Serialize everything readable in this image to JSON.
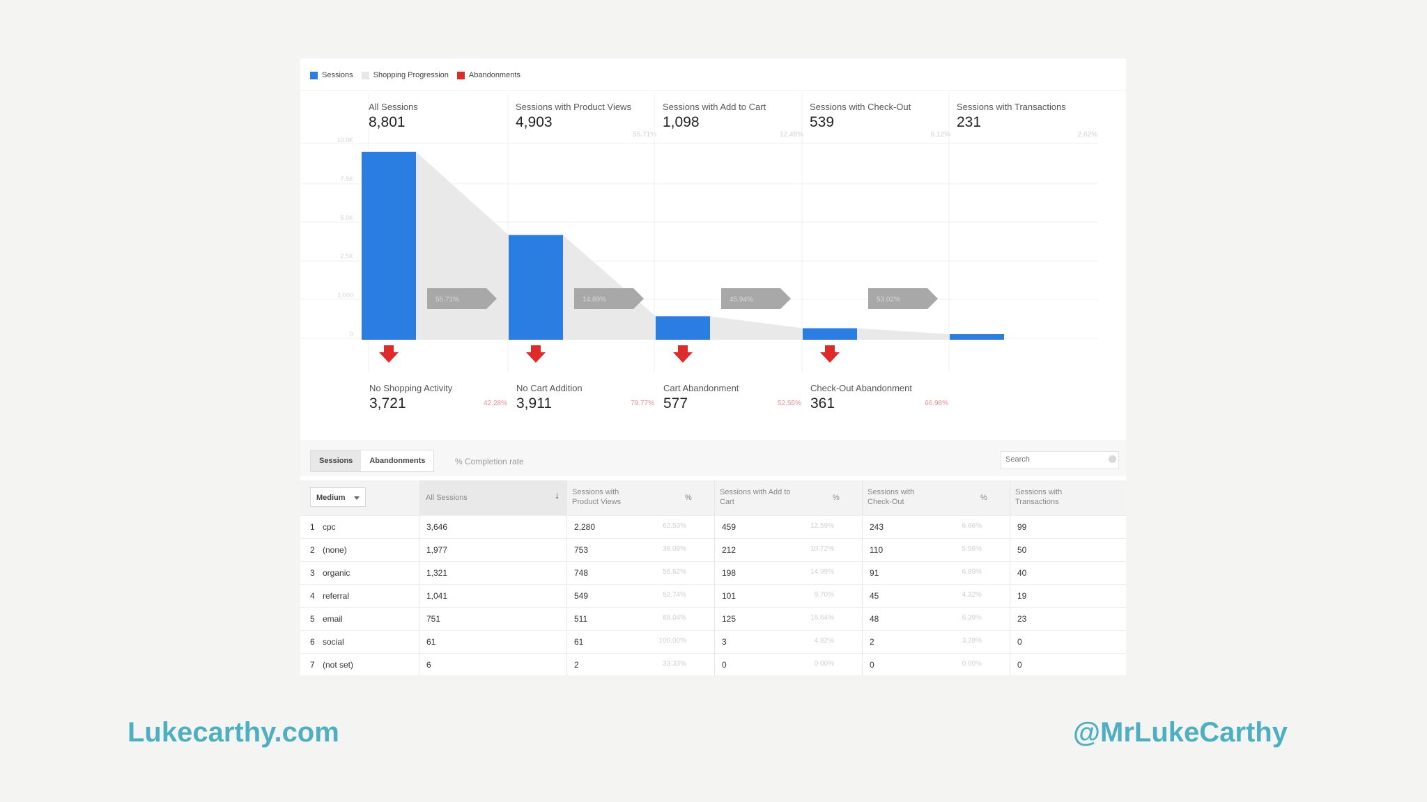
{
  "legend": [
    {
      "label": "Sessions",
      "color": "#2a7de1"
    },
    {
      "label": "Shopping Progression",
      "color": "#e7e7e7"
    },
    {
      "label": "Abandonments",
      "color": "#e02a2a"
    }
  ],
  "stages": [
    {
      "name": "All Sessions",
      "value": "8,801",
      "pct": "",
      "sessions": 8801
    },
    {
      "name": "Sessions with Product Views",
      "value": "4,903",
      "pct": "55.71%",
      "sessions": 4903
    },
    {
      "name": "Sessions with Add to Cart",
      "value": "1,098",
      "pct": "12.48%",
      "sessions": 1098
    },
    {
      "name": "Sessions with Check-Out",
      "value": "539",
      "pct": "6.12%",
      "sessions": 539
    },
    {
      "name": "Sessions with Transactions",
      "value": "231",
      "pct": "2.62%",
      "sessions": 231
    }
  ],
  "y_axis": {
    "ticks": [
      "10.0K",
      "7.5K",
      "5.0K",
      "2.5K",
      "1,000",
      "0"
    ]
  },
  "progressions": [
    "55.71%",
    "14.89%",
    "45.94%",
    "53.02%"
  ],
  "abandonments": [
    {
      "name": "No Shopping Activity",
      "value": "3,721",
      "pct": "42.28%"
    },
    {
      "name": "No Cart Addition",
      "value": "3,911",
      "pct": "79.77%"
    },
    {
      "name": "Cart Abandonment",
      "value": "577",
      "pct": "52.55%"
    },
    {
      "name": "Check-Out Abandonment",
      "value": "361",
      "pct": "66.98%"
    }
  ],
  "table_toolbar": {
    "tabs": [
      "Sessions",
      "Abandonments"
    ],
    "completion_label": "% Completion rate",
    "search_placeholder": "Search"
  },
  "table_header": {
    "dimension": "Medium",
    "all_sessions": "All Sessions",
    "product_views": "Sessions with Product Views",
    "pct": "%",
    "add_to_cart": "Sessions with Add to Cart",
    "check_out": "Sessions with Check-Out",
    "transactions": "Sessions with Transactions"
  },
  "rows": [
    {
      "idx": "1",
      "medium": "cpc",
      "all": "3,646",
      "pv": "2,280",
      "pv_pct": "62.53%",
      "atc": "459",
      "atc_pct": "12.59%",
      "co": "243",
      "co_pct": "6.66%",
      "tx": "99"
    },
    {
      "idx": "2",
      "medium": "(none)",
      "all": "1,977",
      "pv": "753",
      "pv_pct": "38.09%",
      "atc": "212",
      "atc_pct": "10.72%",
      "co": "110",
      "co_pct": "5.56%",
      "tx": "50"
    },
    {
      "idx": "3",
      "medium": "organic",
      "all": "1,321",
      "pv": "748",
      "pv_pct": "56.62%",
      "atc": "198",
      "atc_pct": "14.99%",
      "co": "91",
      "co_pct": "6.89%",
      "tx": "40"
    },
    {
      "idx": "4",
      "medium": "referral",
      "all": "1,041",
      "pv": "549",
      "pv_pct": "52.74%",
      "atc": "101",
      "atc_pct": "9.70%",
      "co": "45",
      "co_pct": "4.32%",
      "tx": "19"
    },
    {
      "idx": "5",
      "medium": "email",
      "all": "751",
      "pv": "511",
      "pv_pct": "68.04%",
      "atc": "125",
      "atc_pct": "16.64%",
      "co": "48",
      "co_pct": "6.39%",
      "tx": "23"
    },
    {
      "idx": "6",
      "medium": "social",
      "all": "61",
      "pv": "61",
      "pv_pct": "100.00%",
      "atc": "3",
      "atc_pct": "4.92%",
      "co": "2",
      "co_pct": "3.28%",
      "tx": "0"
    },
    {
      "idx": "7",
      "medium": "(not set)",
      "all": "6",
      "pv": "2",
      "pv_pct": "33.33%",
      "atc": "0",
      "atc_pct": "0.00%",
      "co": "0",
      "co_pct": "0.00%",
      "tx": "0"
    }
  ],
  "footer": {
    "left": "Lukecarthy.com",
    "right": "@MrLukeCarthy"
  }
}
